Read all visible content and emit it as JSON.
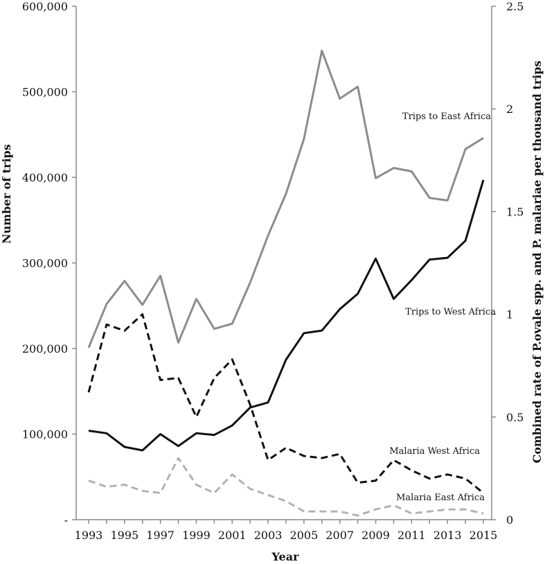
{
  "chart_data": {
    "type": "line",
    "title": "",
    "xlabel": "Year",
    "ylabel_left": "Number of trips",
    "ylabel_right": "Combined rate of  P.ovale spp. and  P. malariae per thousand trips",
    "years": [
      1993,
      1994,
      1995,
      1996,
      1997,
      1998,
      1999,
      2000,
      2001,
      2002,
      2003,
      2004,
      2005,
      2006,
      2007,
      2008,
      2009,
      2010,
      2011,
      2012,
      2013,
      2014,
      2015
    ],
    "x_tick_labels": [
      "1993",
      "1995",
      "1997",
      "1999",
      "2001",
      "2003",
      "2005",
      "2007",
      "2009",
      "2011",
      "2013",
      "2015"
    ],
    "x_tick_years": [
      1993,
      1995,
      1997,
      1999,
      2001,
      2003,
      2005,
      2007,
      2009,
      2011,
      2013,
      2015
    ],
    "y_left": {
      "min": 0,
      "max": 600000,
      "ticks": [
        0,
        100000,
        200000,
        300000,
        400000,
        500000,
        600000
      ],
      "tick_labels": [
        "-",
        "100,000",
        "200,000",
        "300,000",
        "400,000",
        "500,000",
        "600,000"
      ]
    },
    "y_right": {
      "min": 0,
      "max": 2.5,
      "ticks": [
        0,
        0.5,
        1,
        1.5,
        2,
        2.5
      ],
      "tick_labels": [
        "0",
        "0.5",
        "1",
        "1.5",
        "2",
        "2.5"
      ]
    },
    "series": [
      {
        "name": "Trips to East Africa",
        "axis": "left",
        "color": "#8c8c8c",
        "dash": false,
        "values": [
          201000,
          252000,
          279000,
          251000,
          285000,
          207000,
          258000,
          223000,
          229000,
          277000,
          332000,
          381000,
          445000,
          548000,
          492000,
          506000,
          399000,
          411000,
          407000,
          376000,
          373000,
          433000,
          446000
        ]
      },
      {
        "name": "Trips to West Africa",
        "axis": "left",
        "color": "#111111",
        "dash": false,
        "values": [
          104000,
          101000,
          85000,
          81000,
          100000,
          86000,
          101000,
          99000,
          110000,
          131000,
          137000,
          187000,
          218000,
          221000,
          246000,
          264000,
          305000,
          258000,
          280000,
          304000,
          306000,
          326000,
          397000
        ]
      },
      {
        "name": "Malaria West Africa",
        "axis": "right",
        "color": "#111111",
        "dash": true,
        "values": [
          0.62,
          0.95,
          0.92,
          1.0,
          0.68,
          0.69,
          0.5,
          0.69,
          0.78,
          0.56,
          0.29,
          0.35,
          0.31,
          0.3,
          0.32,
          0.18,
          0.19,
          0.29,
          0.24,
          0.2,
          0.22,
          0.2,
          0.13
        ]
      },
      {
        "name": "Malaria East Africa",
        "axis": "right",
        "color": "#b2b2b2",
        "dash": true,
        "values": [
          0.19,
          0.16,
          0.17,
          0.14,
          0.13,
          0.3,
          0.17,
          0.13,
          0.22,
          0.15,
          0.12,
          0.09,
          0.04,
          0.04,
          0.04,
          0.02,
          0.05,
          0.07,
          0.03,
          0.04,
          0.05,
          0.05,
          0.03
        ]
      }
    ]
  }
}
